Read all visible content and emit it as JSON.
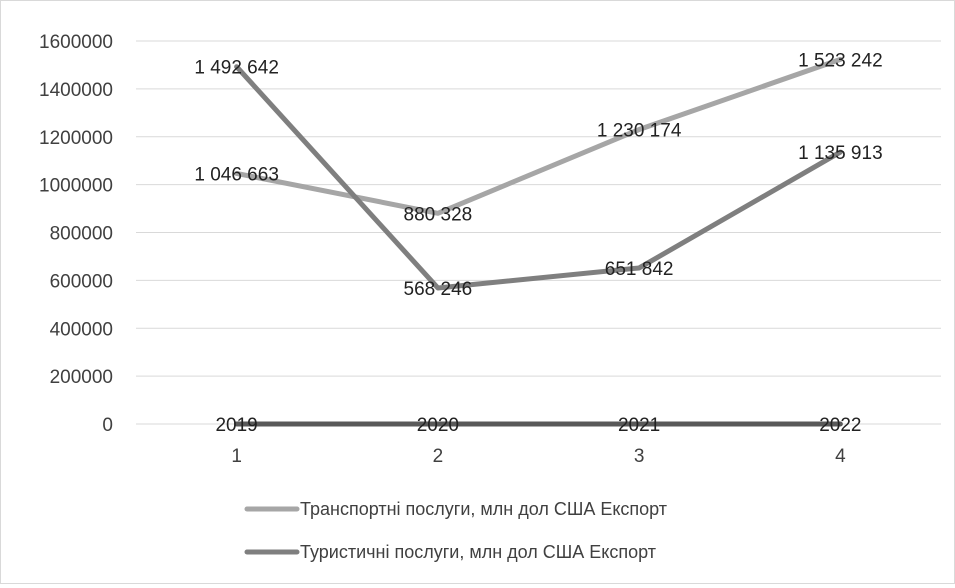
{
  "chart_data": {
    "type": "line",
    "x": [
      "1",
      "2",
      "3",
      "4"
    ],
    "year_labels": [
      "2019",
      "2020",
      "2021",
      "2022"
    ],
    "ylim": [
      0,
      1600000
    ],
    "yticks": [
      "0",
      "200000",
      "400000",
      "600000",
      "800000",
      "1000000",
      "1200000",
      "1400000",
      "1600000"
    ],
    "grid": true,
    "legend_position": "bottom",
    "series": [
      {
        "name": "Транспортні послуги, млн дол США Експорт",
        "color": "#a6a6a6",
        "values": [
          1046663,
          880328,
          1230174,
          1523242
        ],
        "labels": [
          "1 046 663",
          "880 328",
          "1 230 174",
          "1 523 242"
        ]
      },
      {
        "name": "Туристичні послуги, млн дол США Експорт",
        "color": "#7f7f7f",
        "values": [
          1492642,
          568246,
          651842,
          1135913
        ],
        "labels": [
          "1 492 642",
          "568 246",
          "651 842",
          "1 135 913"
        ]
      }
    ],
    "year_series": {
      "color": "#595959",
      "values": [
        0,
        0,
        0,
        0
      ]
    }
  }
}
